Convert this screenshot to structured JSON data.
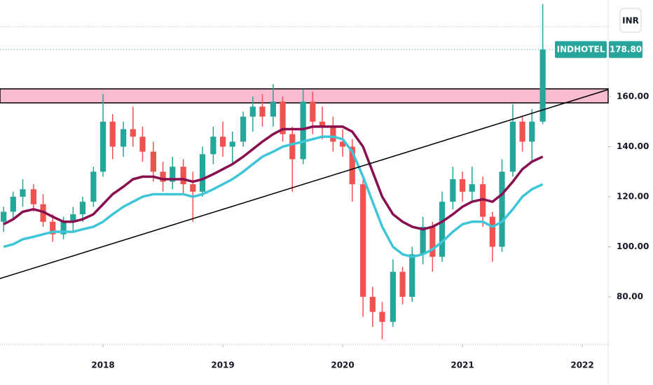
{
  "chart_data": {
    "type": "candlestick",
    "symbol": "INDHOTEL",
    "currency": "INR",
    "last_price": {
      "value": 178.8,
      "label": "178.80"
    },
    "up_color": "#26a69a",
    "down_color": "#ef5350",
    "x": [
      2017.17,
      2017.25,
      2017.33,
      2017.42,
      2017.5,
      2017.58,
      2017.67,
      2017.75,
      2017.83,
      2017.92,
      2018.0,
      2018.08,
      2018.17,
      2018.25,
      2018.33,
      2018.42,
      2018.5,
      2018.58,
      2018.67,
      2018.75,
      2018.83,
      2018.92,
      2019.0,
      2019.08,
      2019.17,
      2019.25,
      2019.33,
      2019.42,
      2019.5,
      2019.58,
      2019.67,
      2019.75,
      2019.83,
      2019.92,
      2020.0,
      2020.08,
      2020.17,
      2020.25,
      2020.33,
      2020.42,
      2020.5,
      2020.58,
      2020.67,
      2020.75,
      2020.83,
      2020.92,
      2021.0,
      2021.08,
      2021.17,
      2021.25,
      2021.33,
      2021.42,
      2021.5,
      2021.58,
      2021.67
    ],
    "open": [
      110,
      114,
      120,
      123,
      117,
      110,
      105,
      110,
      113,
      118,
      130,
      150,
      140,
      147,
      144,
      138,
      130,
      126,
      132,
      125,
      122,
      137,
      144,
      140,
      142,
      152,
      156,
      152,
      158,
      145,
      135,
      158,
      150,
      148,
      142,
      140,
      125,
      80,
      74,
      70,
      90,
      80,
      97,
      108,
      96,
      118,
      127,
      122,
      125,
      112,
      100,
      130,
      150,
      142,
      150
    ],
    "high": [
      116,
      122,
      127,
      125,
      121,
      113,
      112,
      116,
      120,
      132,
      161,
      153,
      150,
      156,
      148,
      142,
      134,
      136,
      135,
      130,
      140,
      148,
      150,
      146,
      154,
      160,
      161,
      165,
      160,
      148,
      163,
      162,
      156,
      152,
      147,
      143,
      127,
      84,
      78,
      95,
      92,
      100,
      112,
      110,
      122,
      132,
      130,
      132,
      128,
      114,
      135,
      157,
      152,
      155,
      197
    ],
    "low": [
      106,
      111,
      116,
      114,
      108,
      102,
      103,
      106,
      110,
      116,
      128,
      135,
      136,
      140,
      134,
      126,
      122,
      123,
      121,
      110,
      120,
      133,
      136,
      133,
      140,
      146,
      148,
      148,
      142,
      122,
      133,
      145,
      143,
      138,
      136,
      118,
      72,
      68,
      63,
      68,
      77,
      78,
      93,
      90,
      94,
      115,
      118,
      118,
      108,
      94,
      98,
      128,
      138,
      134,
      149
    ],
    "close": [
      114,
      120,
      123,
      117,
      110,
      105,
      110,
      113,
      118,
      130,
      150,
      140,
      147,
      144,
      138,
      130,
      126,
      132,
      125,
      122,
      137,
      144,
      140,
      142,
      152,
      156,
      152,
      158,
      145,
      135,
      158,
      150,
      148,
      142,
      140,
      125,
      80,
      74,
      70,
      90,
      80,
      97,
      108,
      96,
      118,
      127,
      122,
      125,
      112,
      100,
      130,
      150,
      142,
      150,
      178.8
    ],
    "lines": [
      {
        "color": "#880e4f",
        "values": [
          109,
          111,
          114,
          115,
          114,
          112,
          110,
          110,
          111,
          113,
          117,
          121,
          124,
          127,
          128,
          128,
          127,
          127,
          127,
          126,
          127,
          129,
          131,
          133,
          136,
          139,
          142,
          145,
          147,
          147,
          147,
          148,
          148,
          148,
          148,
          146,
          140,
          130,
          120,
          113,
          110,
          108,
          107,
          108,
          110,
          113,
          116,
          118,
          119,
          118,
          121,
          126,
          131,
          134,
          136
        ]
      },
      {
        "color": "#3ec6d8",
        "values": [
          100,
          101,
          103,
          104,
          105,
          106,
          106,
          106,
          107,
          108,
          110,
          113,
          116,
          118,
          120,
          121,
          121,
          121,
          121,
          120,
          121,
          123,
          125,
          127,
          130,
          133,
          136,
          138,
          140,
          141,
          142,
          143,
          144,
          144,
          143,
          138,
          128,
          118,
          108,
          100,
          97,
          96,
          97,
          99,
          102,
          106,
          109,
          110,
          110,
          108,
          110,
          115,
          120,
          123,
          125
        ]
      }
    ],
    "trendline": {
      "x": [
        2017.14,
        2022.216
      ],
      "y": [
        87.3,
        162.8
      ],
      "color": "#000000"
    },
    "zone": {
      "y": [
        157.5,
        163.1
      ],
      "color": "#f8bbd0"
    },
    "xlim": [
      2017.14,
      2022.216
    ],
    "xticks": [
      2018,
      2019,
      2020,
      2021,
      2022
    ],
    "ylim": [
      61,
      198.6
    ],
    "yticks": [
      {
        "value": 80,
        "label": "80.00"
      },
      {
        "value": 100,
        "label": "100.00"
      },
      {
        "value": 120,
        "label": "120.00"
      },
      {
        "value": 140,
        "label": "140.00"
      },
      {
        "value": 160,
        "label": "160.00"
      }
    ]
  }
}
